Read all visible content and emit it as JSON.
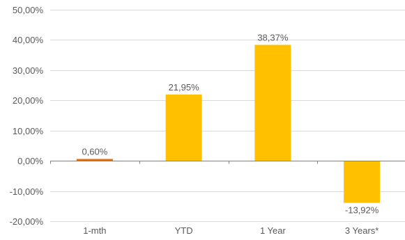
{
  "chart_data": {
    "type": "bar",
    "categories": [
      "1-mth",
      "YTD",
      "1 Year",
      "3 Years*"
    ],
    "values": [
      0.6,
      21.95,
      38.37,
      -13.92
    ],
    "data_labels": [
      "0,60%",
      "21,95%",
      "38,37%",
      "-13,92%"
    ],
    "ylim": [
      -20,
      50
    ],
    "yticks": [
      50,
      40,
      30,
      20,
      10,
      0,
      -10,
      -20
    ],
    "ytick_labels": [
      "50,00%",
      "40,00%",
      "30,00%",
      "20,00%",
      "10,00%",
      "0,00%",
      "-10,00%",
      "-20,00%"
    ],
    "grid": true,
    "legend": "none",
    "bar_colors": [
      "#E36C0A",
      "#FFC000",
      "#FFC000",
      "#FFC000"
    ],
    "gridline_color": "#D9D9D9",
    "axis_color": "#808080",
    "label_color": "#595959"
  }
}
